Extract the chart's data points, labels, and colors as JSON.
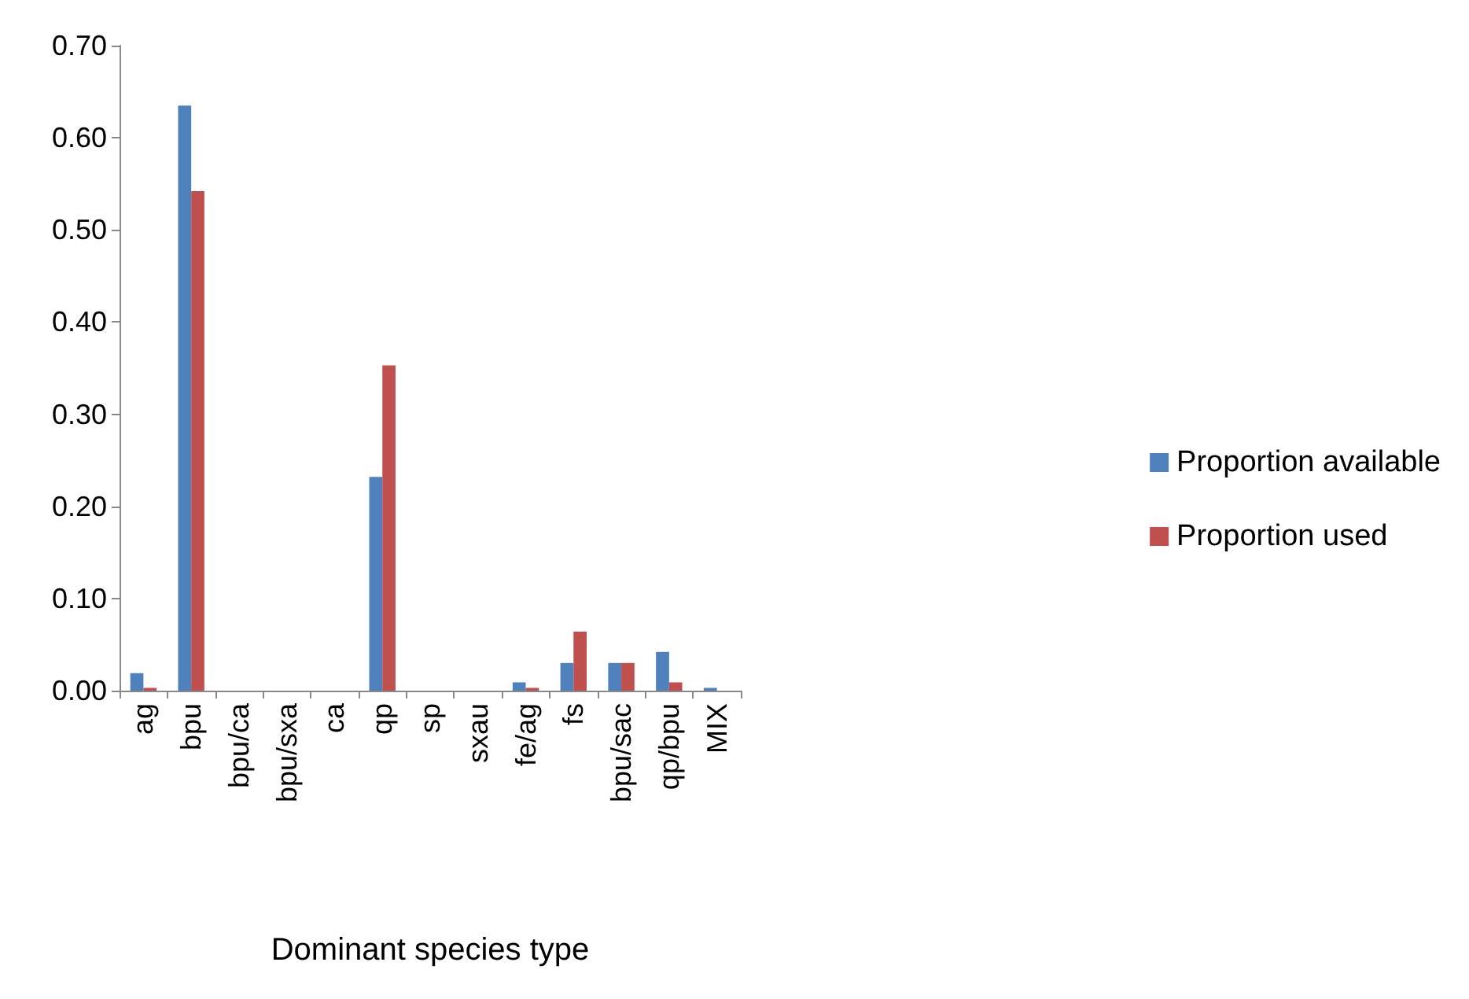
{
  "chart_data": {
    "type": "bar",
    "xlabel": "Dominant species type",
    "categories": [
      "ag",
      "bpu",
      "bpu/ca",
      "bpu/sxa",
      "ca",
      "qp",
      "sp",
      "sxau",
      "fe/ag",
      "fs",
      "bpu/sac",
      "qp/bpu",
      "MIX"
    ],
    "series": [
      {
        "name": "Proportion available",
        "color": "#4f81bd",
        "values": [
          0.019,
          0.635,
          0,
          0,
          0,
          0.232,
          0,
          0,
          0.009,
          0.03,
          0.03,
          0.042,
          0.003
        ]
      },
      {
        "name": "Proportion used",
        "color": "#c0504d",
        "values": [
          0.003,
          0.542,
          0,
          0,
          0,
          0.353,
          0,
          0,
          0.003,
          0.064,
          0.03,
          0.009,
          0
        ]
      }
    ],
    "ylim": [
      0,
      0.7
    ],
    "yticks": [
      {
        "value": 0,
        "label": "0.00"
      },
      {
        "value": 0.1,
        "label": "0.10"
      },
      {
        "value": 0.2,
        "label": "0.20"
      },
      {
        "value": 0.3,
        "label": "0.30"
      },
      {
        "value": 0.4,
        "label": "0.40"
      },
      {
        "value": 0.5,
        "label": "0.50"
      },
      {
        "value": 0.6,
        "label": "0.60"
      },
      {
        "value": 0.7,
        "label": "0.70"
      }
    ],
    "grid": false,
    "legend": "right"
  }
}
